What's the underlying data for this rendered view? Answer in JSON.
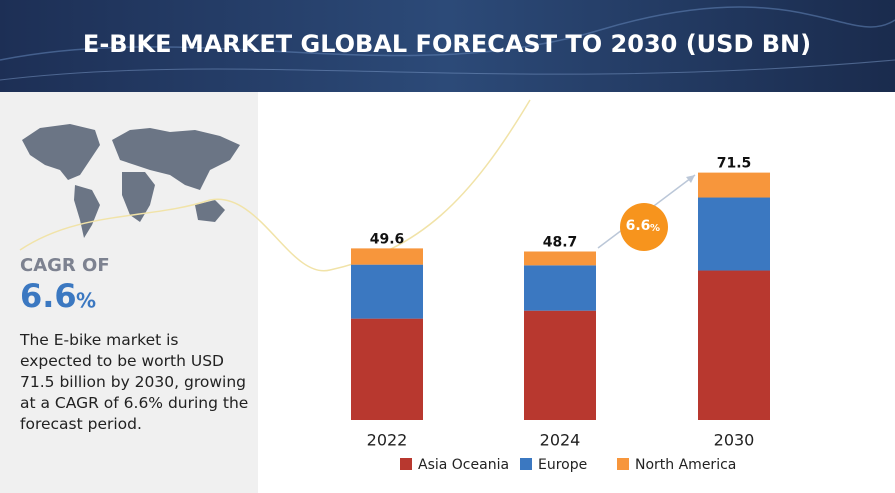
{
  "chart_data": {
    "type": "stacked-bar",
    "title": "E-BIKE MARKET GLOBAL FORECAST TO 2030 (USD BN)",
    "categories": [
      "2022",
      "2024",
      "2030"
    ],
    "series": [
      {
        "name": "Asia Oceania",
        "color": "#b8382f",
        "values": [
          29.3,
          31.6,
          43.2
        ]
      },
      {
        "name": "Europe",
        "color": "#3b78c1",
        "values": [
          15.6,
          13.1,
          21.1
        ]
      },
      {
        "name": "North America",
        "color": "#f7963c",
        "values": [
          4.7,
          4.0,
          7.2
        ]
      }
    ],
    "totals": [
      49.6,
      48.7,
      71.5
    ],
    "legend": "bottom"
  },
  "sidebar": {
    "cagr_label": "CAGR OF",
    "cagr_value": "6.6",
    "cagr_unit": "%",
    "description": "The E-bike market is expected to be worth USD 71.5 billion by 2030, growing at a CAGR of 6.6% during the forecast period."
  }
}
